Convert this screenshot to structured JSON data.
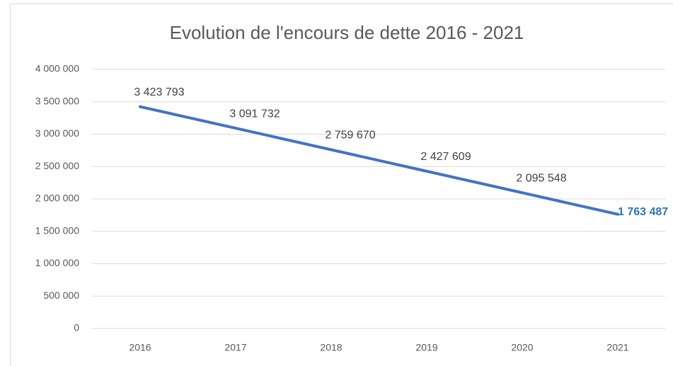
{
  "chart_data": {
    "type": "line",
    "title": "Evolution de l'encours de dette 2016 - 2021",
    "categories": [
      "2016",
      "2017",
      "2018",
      "2019",
      "2020",
      "2021"
    ],
    "series": [
      {
        "name": "Encours de dette",
        "color": "#4472c4",
        "values": [
          3423793,
          3091732,
          2759670,
          2427609,
          2095548,
          1763487
        ],
        "value_labels": [
          "3 423 793",
          "3 091 732",
          "2 759 670",
          "2 427 609",
          "2 095 548",
          "1 763 487"
        ]
      }
    ],
    "ylim": [
      0,
      4000000
    ],
    "yticks": [
      0,
      {
        "value": 500000,
        "label": "500 000"
      },
      {
        "value": 1000000,
        "label": "1 000 000"
      },
      {
        "value": 1500000,
        "label": "1 500 000"
      },
      {
        "value": 2000000,
        "label": "2 000 000"
      },
      {
        "value": 2500000,
        "label": "2 500 000"
      },
      {
        "value": 3000000,
        "label": "3 000 000"
      },
      {
        "value": 3500000,
        "label": "3 500 000"
      },
      {
        "value": 4000000,
        "label": "4 000 000"
      }
    ],
    "grid": true
  }
}
